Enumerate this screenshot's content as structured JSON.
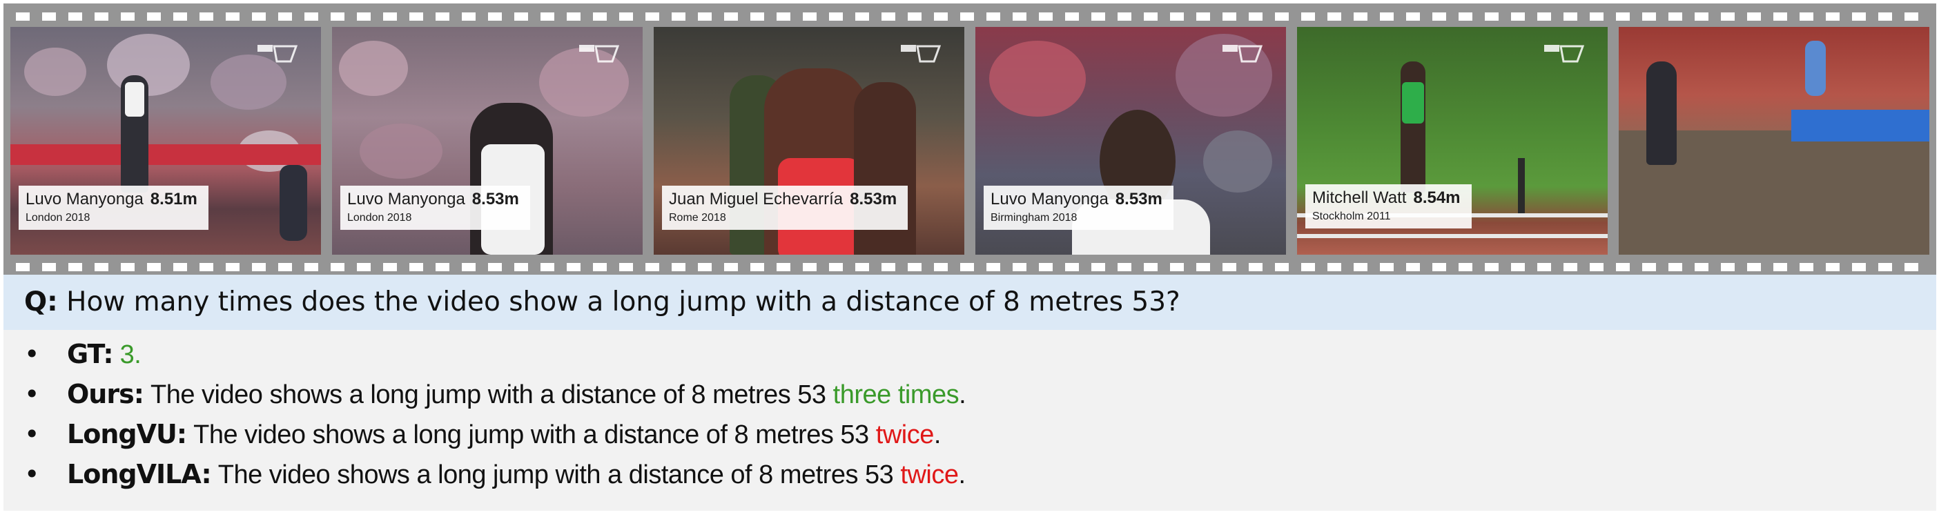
{
  "frames": [
    {
      "name": "Luvo Manyonga",
      "distance": "8.51m",
      "place": "London 2018",
      "has_caption": true
    },
    {
      "name": "Luvo Manyonga",
      "distance": "8.53m",
      "place": "London 2018",
      "has_caption": true
    },
    {
      "name": "Juan Miguel Echevarría",
      "distance": "8.53m",
      "place": "Rome 2018",
      "has_caption": true
    },
    {
      "name": "Luvo Manyonga",
      "distance": "8.53m",
      "place": "Birmingham 2018",
      "has_caption": true
    },
    {
      "name": "Mitchell Watt",
      "distance": "8.54m",
      "place": "Stockholm 2011",
      "has_caption": true
    },
    {
      "name": "",
      "distance": "",
      "place": "",
      "has_caption": false
    }
  ],
  "question": {
    "prefix": "Q:",
    "text": "How many times does the video show a long jump with a distance of 8 metres 53?"
  },
  "answers": [
    {
      "label": "GT:",
      "text": "",
      "answer": "3.",
      "tail": "",
      "answer_color": "green"
    },
    {
      "label": "Ours:",
      "text": "The video shows a long jump with a distance of 8 metres 53",
      "answer": "three times",
      "tail": ".",
      "answer_color": "green"
    },
    {
      "label": "LongVU:",
      "text": "The video shows a long jump with a distance of 8 metres 53",
      "answer": "twice",
      "tail": ".",
      "answer_color": "red"
    },
    {
      "label": "LongVILA:",
      "text": "The video shows a long jump with a distance of 8 metres 53",
      "answer": "twice",
      "tail": ".",
      "answer_color": "red"
    }
  ],
  "bullet": "•"
}
